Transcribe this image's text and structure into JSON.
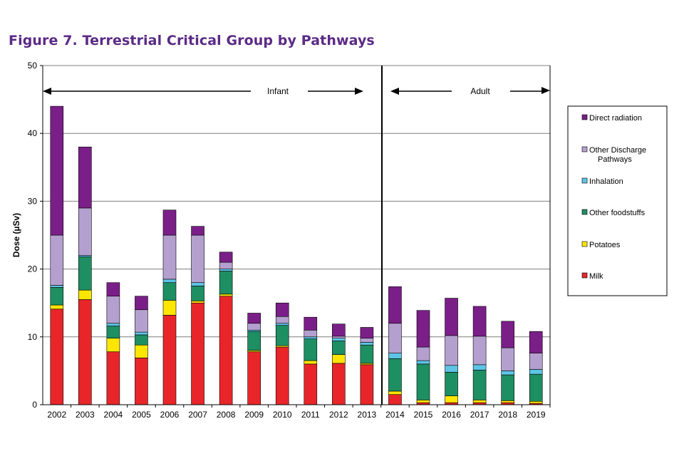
{
  "title": "Figure 7.  Terrestrial Critical Group by Pathways",
  "chart_data": {
    "type": "bar",
    "stacked": true,
    "ylabel": "Dose (µSv)",
    "xlabel": "",
    "ylim": [
      0,
      50
    ],
    "yticks": [
      0,
      10,
      20,
      30,
      40,
      50
    ],
    "grid": true,
    "categories": [
      "2002",
      "2003",
      "2004",
      "2005",
      "2006",
      "2007",
      "2008",
      "2009",
      "2010",
      "2011",
      "2012",
      "2013",
      "2014",
      "2015",
      "2016",
      "2017",
      "2018",
      "2019"
    ],
    "series": [
      {
        "name": "Milk",
        "color": "#e8262a",
        "values": [
          14.1,
          15.5,
          7.8,
          6.9,
          13.2,
          15.0,
          16.0,
          7.8,
          8.5,
          6.0,
          6.1,
          5.9,
          1.5,
          0.3,
          0.3,
          0.3,
          0.3,
          0.2
        ]
      },
      {
        "name": "Potatoes",
        "color": "#ffe600",
        "values": [
          0.6,
          1.4,
          2.0,
          1.9,
          2.2,
          0.3,
          0.3,
          0.2,
          0.2,
          0.5,
          1.3,
          0.2,
          0.5,
          0.4,
          1.0,
          0.4,
          0.3,
          0.3
        ]
      },
      {
        "name": "Other foodstuffs",
        "color": "#1e8e63",
        "values": [
          2.6,
          4.9,
          1.8,
          1.5,
          2.6,
          2.2,
          3.4,
          2.8,
          3.0,
          3.2,
          2.0,
          2.7,
          4.8,
          5.3,
          3.5,
          4.4,
          3.8,
          4.0
        ]
      },
      {
        "name": "Inhalation",
        "color": "#5ec4e6",
        "values": [
          0.3,
          0.2,
          0.4,
          0.4,
          0.5,
          0.5,
          0.3,
          0.2,
          0.3,
          0.3,
          0.4,
          0.4,
          0.8,
          0.5,
          1.0,
          0.8,
          0.6,
          0.7
        ]
      },
      {
        "name": "Other Discharge Pathways",
        "color": "#b4a0ce",
        "values": [
          7.4,
          7.0,
          4.0,
          3.3,
          6.5,
          7.0,
          1.0,
          1.0,
          1.0,
          1.0,
          0.3,
          0.6,
          4.4,
          2.0,
          4.4,
          4.2,
          3.4,
          2.4
        ]
      },
      {
        "name": "Direct radiation",
        "color": "#7b1f88",
        "values": [
          19.0,
          9.0,
          2.0,
          2.0,
          3.7,
          1.3,
          1.5,
          1.5,
          2.0,
          1.9,
          1.8,
          1.6,
          5.4,
          5.4,
          5.5,
          4.4,
          3.9,
          3.2
        ]
      }
    ],
    "legend_position": "right",
    "annotations": {
      "left_label": "Infant",
      "right_label": "Adult"
    }
  }
}
